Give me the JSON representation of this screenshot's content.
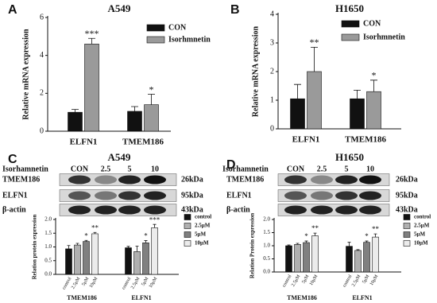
{
  "chart_data": [
    {
      "type": "bar",
      "panel": "A",
      "title": "A549",
      "y_label": "Relative mRNA expression",
      "categories": [
        "ELFN1",
        "TMEM186"
      ],
      "series": [
        {
          "name": "CON",
          "color": "#111111",
          "values": [
            1.0,
            1.05
          ],
          "errors": [
            0.15,
            0.25
          ],
          "significance": [
            null,
            null
          ]
        },
        {
          "name": "Isorhmnetin",
          "color": "#9a9a9a",
          "values": [
            4.6,
            1.4
          ],
          "errors": [
            0.3,
            0.55
          ],
          "significance": [
            "***",
            "*"
          ]
        }
      ],
      "ylim": [
        0,
        6
      ],
      "yticks": [
        0,
        2,
        4,
        6
      ]
    },
    {
      "type": "bar",
      "panel": "B",
      "title": "H1650",
      "y_label": "Relative mRNA expression",
      "categories": [
        "ELFN1",
        "TMEM186"
      ],
      "series": [
        {
          "name": "CON",
          "color": "#111111",
          "values": [
            1.05,
            1.05
          ],
          "errors": [
            0.5,
            0.3
          ],
          "significance": [
            null,
            null
          ]
        },
        {
          "name": "Isorhmnetin",
          "color": "#9a9a9a",
          "values": [
            2.0,
            1.3
          ],
          "errors": [
            0.85,
            0.4
          ],
          "significance": [
            "**",
            "*"
          ]
        }
      ],
      "ylim": [
        0,
        4
      ],
      "yticks": [
        0,
        1,
        2,
        3,
        4
      ]
    },
    {
      "type": "bar",
      "y_label": "Relation protein expression",
      "categories": [
        "TMEM186",
        "ELFN1"
      ],
      "series": [
        {
          "name": "control",
          "color": "#111111",
          "values": [
            0.93,
            0.97
          ],
          "errors": [
            0.12,
            0.05
          ],
          "significance": [
            null,
            null
          ]
        },
        {
          "name": "2.5μM",
          "color": "#b0b0b0",
          "values": [
            1.07,
            0.83
          ],
          "errors": [
            0.06,
            0.2
          ],
          "significance": [
            null,
            null
          ]
        },
        {
          "name": "5μM",
          "color": "#808080",
          "values": [
            1.2,
            1.15
          ],
          "errors": [
            0.04,
            0.08
          ],
          "significance": [
            "*",
            "*"
          ]
        },
        {
          "name": "10μM",
          "color": "#ececec",
          "values": [
            1.48,
            1.7
          ],
          "errors": [
            0.05,
            0.12
          ],
          "significance": [
            "**",
            "***"
          ]
        }
      ],
      "ylim": [
        0,
        2
      ],
      "yticks": [
        {
          "value": 0,
          "label": "0.0"
        },
        {
          "value": 0.5,
          "label": "0.5"
        },
        {
          "value": 1,
          "label": "1.0"
        },
        {
          "value": 1.5,
          "label": "1.5"
        },
        {
          "value": 2,
          "label": "2.0"
        }
      ]
    },
    {
      "type": "bar",
      "y_label": "Relation Protein expression",
      "categories": [
        "TMEM186",
        "ELFN1"
      ],
      "series": [
        {
          "name": "control",
          "color": "#111111",
          "values": [
            1.0,
            0.98
          ],
          "errors": [
            0.03,
            0.15
          ],
          "significance": [
            null,
            null
          ]
        },
        {
          "name": "2.5μM",
          "color": "#b0b0b0",
          "values": [
            1.05,
            0.82
          ],
          "errors": [
            0.04,
            0.03
          ],
          "significance": [
            null,
            null
          ]
        },
        {
          "name": "5μM",
          "color": "#808080",
          "values": [
            1.12,
            1.13
          ],
          "errors": [
            0.06,
            0.05
          ],
          "significance": [
            "*",
            "*"
          ]
        },
        {
          "name": "10μM",
          "color": "#ececec",
          "values": [
            1.38,
            1.33
          ],
          "errors": [
            0.1,
            0.12
          ],
          "significance": [
            "**",
            "**"
          ]
        }
      ],
      "ylim": [
        0,
        2
      ],
      "yticks": [
        {
          "value": 0,
          "label": "0.0"
        },
        {
          "value": 0.5,
          "label": "0.5"
        },
        {
          "value": 1,
          "label": "1.0"
        },
        {
          "value": 1.5,
          "label": "1.5"
        },
        {
          "value": 2,
          "label": "2.0"
        }
      ]
    }
  ],
  "blots": [
    {
      "panel": "C",
      "title": "A549",
      "treatment": "Isorhamnetin",
      "lanes": [
        "CON",
        "2.5",
        "5",
        "10"
      ],
      "rows": [
        {
          "protein": "TMEM186",
          "size": "26kDa"
        },
        {
          "protein": "ELFN1",
          "size": "95kDa"
        },
        {
          "protein": "β-actin",
          "size": "43kDa"
        }
      ]
    },
    {
      "panel": "D",
      "title": "H1650",
      "treatment": "Isorhamnetin",
      "lanes": [
        "CON",
        "2.5",
        "5",
        "10"
      ],
      "rows": [
        {
          "protein": "TMEM186",
          "size": "26kDa"
        },
        {
          "protein": "ELFN1",
          "size": "95kDa"
        },
        {
          "protein": "β-actin",
          "size": "43kDa"
        }
      ]
    }
  ]
}
